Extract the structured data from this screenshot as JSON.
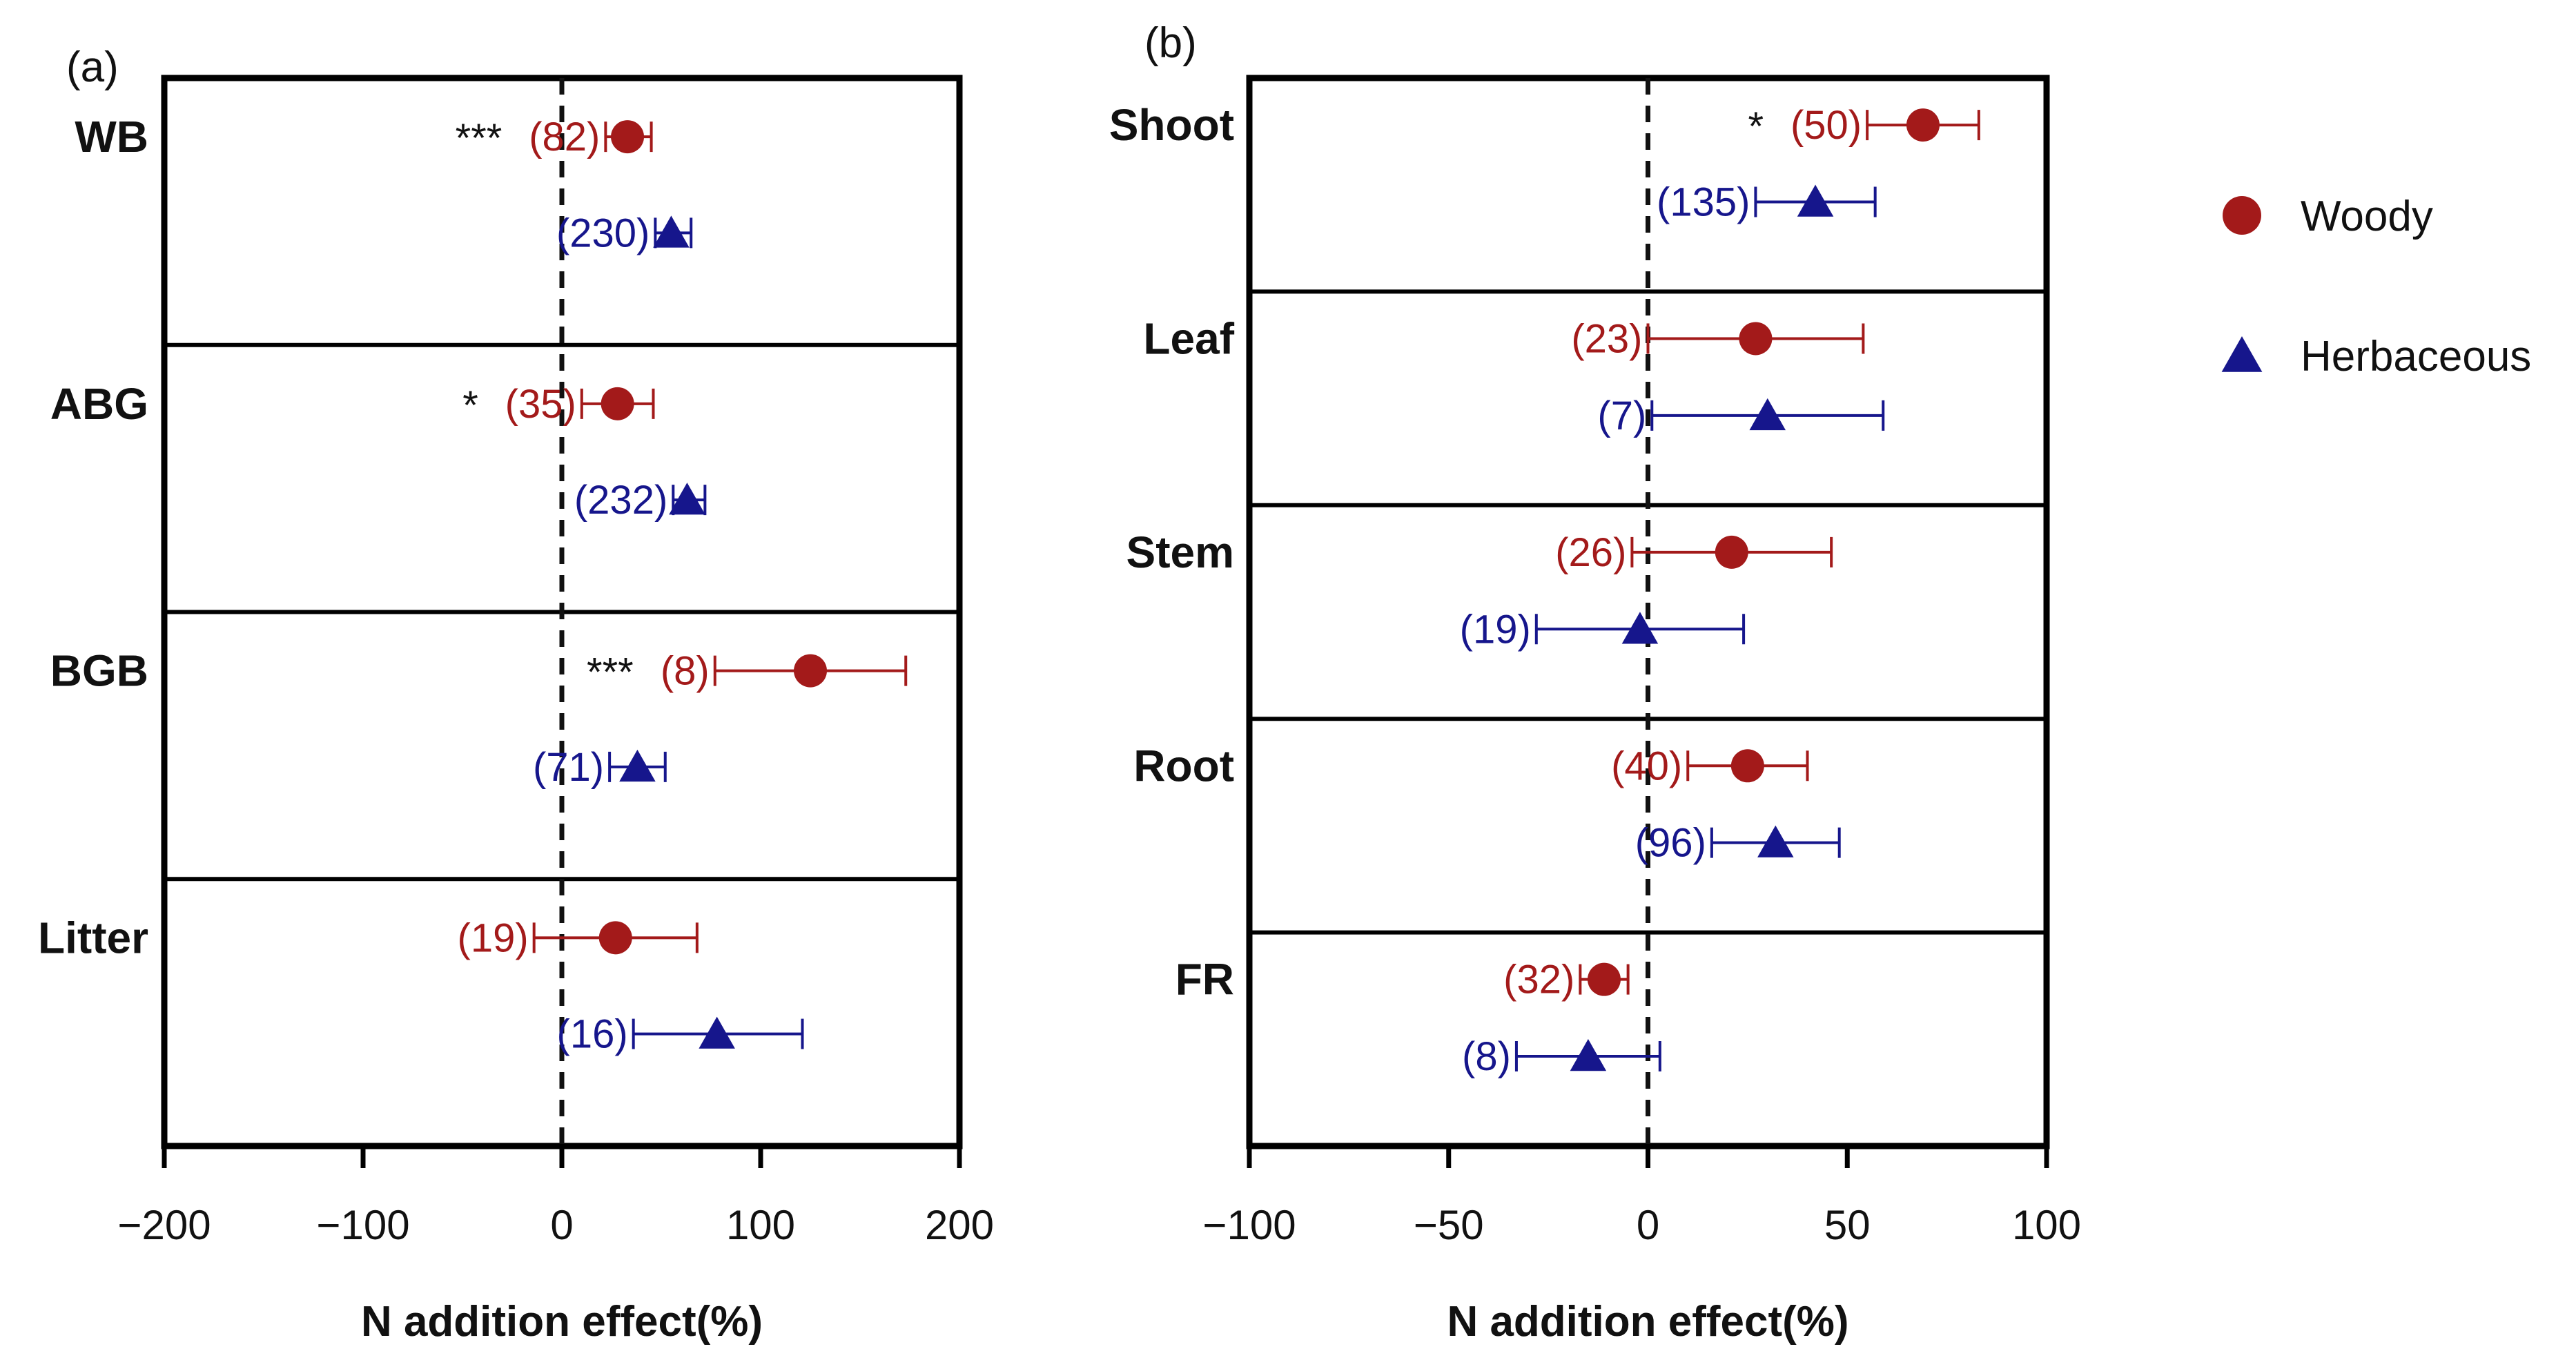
{
  "colors": {
    "woody": "#a31a1a",
    "herbaceous": "#16168c",
    "frame": "#000000"
  },
  "legend": [
    {
      "key": "woody",
      "label": "Woody",
      "marker": "circle"
    },
    {
      "key": "herbaceous",
      "label": "Herbaceous",
      "marker": "triangle"
    }
  ],
  "chart_data": [
    {
      "type": "forest",
      "panel": "(a)",
      "xlabel": "N addition effect(%)",
      "xlim": [
        -200,
        200
      ],
      "xticks": [
        -200,
        -100,
        0,
        100,
        200
      ],
      "xtick_labels": [
        "−200",
        "−100",
        "0",
        "100",
        "200"
      ],
      "reference_line": 0,
      "categories": [
        {
          "label": "WB",
          "woody": {
            "mean": 33,
            "lo": 22,
            "hi": 45,
            "n": "(82)",
            "sig": "***"
          },
          "herbaceous": {
            "mean": 55,
            "lo": 47,
            "hi": 65,
            "n": "(230)"
          }
        },
        {
          "label": "ABG",
          "woody": {
            "mean": 28,
            "lo": 10,
            "hi": 46,
            "n": "(35)",
            "sig": "*"
          },
          "herbaceous": {
            "mean": 63,
            "lo": 56,
            "hi": 72,
            "n": "(232)"
          }
        },
        {
          "label": "BGB",
          "woody": {
            "mean": 125,
            "lo": 77,
            "hi": 173,
            "n": "(8)",
            "sig": "***"
          },
          "herbaceous": {
            "mean": 38,
            "lo": 24,
            "hi": 52,
            "n": "(71)"
          }
        },
        {
          "label": "Litter",
          "woody": {
            "mean": 27,
            "lo": -14,
            "hi": 68,
            "n": "(19)"
          },
          "herbaceous": {
            "mean": 78,
            "lo": 36,
            "hi": 121,
            "n": "(16)"
          }
        }
      ]
    },
    {
      "type": "forest",
      "panel": "(b)",
      "xlabel": "N addition effect(%)",
      "xlim": [
        -100,
        100
      ],
      "xticks": [
        -100,
        -50,
        0,
        50,
        100
      ],
      "xtick_labels": [
        "−100",
        "−50",
        "0",
        "50",
        "100"
      ],
      "reference_line": 0,
      "categories": [
        {
          "label": "Shoot",
          "woody": {
            "mean": 69,
            "lo": 55,
            "hi": 83,
            "n": "(50)",
            "sig": "*"
          },
          "herbaceous": {
            "mean": 42,
            "lo": 27,
            "hi": 57,
            "n": "(135)"
          }
        },
        {
          "label": "Leaf",
          "woody": {
            "mean": 27,
            "lo": 0,
            "hi": 54,
            "n": "(23)"
          },
          "herbaceous": {
            "mean": 30,
            "lo": 1,
            "hi": 59,
            "n": "(7)"
          }
        },
        {
          "label": "Stem",
          "woody": {
            "mean": 21,
            "lo": -4,
            "hi": 46,
            "n": "(26)"
          },
          "herbaceous": {
            "mean": -2,
            "lo": -28,
            "hi": 24,
            "n": "(19)"
          }
        },
        {
          "label": "Root",
          "woody": {
            "mean": 25,
            "lo": 10,
            "hi": 40,
            "n": "(40)"
          },
          "herbaceous": {
            "mean": 32,
            "lo": 16,
            "hi": 48,
            "n": "(96)"
          }
        },
        {
          "label": "FR",
          "woody": {
            "mean": -11,
            "lo": -17,
            "hi": -5,
            "n": "(32)"
          },
          "herbaceous": {
            "mean": -15,
            "lo": -33,
            "hi": 3,
            "n": "(8)"
          }
        }
      ]
    }
  ]
}
